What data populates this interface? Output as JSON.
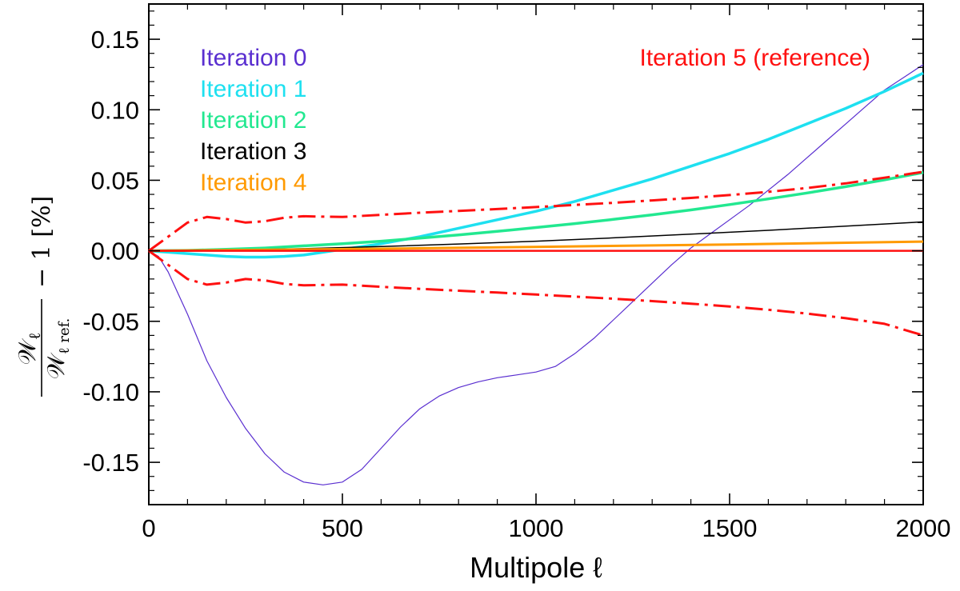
{
  "chart_data": {
    "type": "line",
    "title": "",
    "xlabel": "Multipole ℓ",
    "ylabel_parts": {
      "numerator": "𝒲",
      "numerator_sub": "ℓ",
      "denominator": "𝒲",
      "denominator_sub": "ℓ ref.",
      "suffix": "− 1 [%]"
    },
    "xlim": [
      0,
      2000
    ],
    "ylim": [
      -0.18,
      0.175
    ],
    "xticks": [
      0,
      500,
      1000,
      1500,
      2000
    ],
    "xtick_labels": [
      "0",
      "500",
      "1000",
      "1500",
      "2000"
    ],
    "yticks": [
      -0.15,
      -0.1,
      -0.05,
      0.0,
      0.05,
      0.1,
      0.15
    ],
    "ytick_labels": [
      "-0.15",
      "-0.10",
      "-0.05",
      "0.00",
      "0.05",
      "0.10",
      "0.15"
    ],
    "grid": false,
    "legend_placement": "top-left",
    "series": [
      {
        "name": "Iteration 0",
        "color": "#5a2fd0",
        "style": "solid",
        "width": 1.2,
        "x": [
          0,
          25,
          50,
          100,
          150,
          200,
          250,
          300,
          350,
          400,
          450,
          500,
          550,
          600,
          650,
          700,
          750,
          800,
          850,
          900,
          950,
          1000,
          1050,
          1100,
          1150,
          1200,
          1250,
          1300,
          1350,
          1400,
          1450,
          1500,
          1550,
          1600,
          1650,
          1700,
          1750,
          1800,
          1850,
          1900,
          1950,
          2000
        ],
        "y": [
          0.0,
          -0.004,
          -0.015,
          -0.045,
          -0.078,
          -0.104,
          -0.126,
          -0.144,
          -0.157,
          -0.164,
          -0.166,
          -0.164,
          -0.155,
          -0.14,
          -0.125,
          -0.112,
          -0.103,
          -0.097,
          -0.093,
          -0.09,
          -0.088,
          -0.086,
          -0.082,
          -0.073,
          -0.062,
          -0.049,
          -0.036,
          -0.023,
          -0.01,
          0.002,
          0.012,
          0.022,
          0.032,
          0.043,
          0.054,
          0.066,
          0.078,
          0.09,
          0.102,
          0.114,
          0.123,
          0.132
        ]
      },
      {
        "name": "Iteration 1",
        "color": "#1ee0f0",
        "style": "solid",
        "width": 3.5,
        "x": [
          0,
          50,
          100,
          150,
          200,
          250,
          300,
          350,
          400,
          450,
          500,
          600,
          700,
          800,
          900,
          1000,
          1100,
          1200,
          1300,
          1400,
          1500,
          1600,
          1700,
          1800,
          1900,
          2000
        ],
        "y": [
          0.0,
          -0.001,
          -0.002,
          -0.003,
          -0.004,
          -0.0045,
          -0.0045,
          -0.004,
          -0.003,
          -0.001,
          0.001,
          0.005,
          0.01,
          0.016,
          0.022,
          0.028,
          0.035,
          0.043,
          0.051,
          0.06,
          0.069,
          0.079,
          0.09,
          0.101,
          0.113,
          0.126
        ]
      },
      {
        "name": "Iteration 2",
        "color": "#22e890",
        "style": "solid",
        "width": 3.5,
        "x": [
          0,
          100,
          200,
          300,
          400,
          500,
          600,
          700,
          800,
          900,
          1000,
          1100,
          1200,
          1300,
          1400,
          1500,
          1600,
          1700,
          1800,
          1900,
          2000
        ],
        "y": [
          0.0,
          0.0003,
          0.001,
          0.002,
          0.0035,
          0.005,
          0.0068,
          0.009,
          0.0113,
          0.0138,
          0.0165,
          0.0193,
          0.0223,
          0.0255,
          0.029,
          0.0328,
          0.0368,
          0.041,
          0.0455,
          0.0503,
          0.0555
        ]
      },
      {
        "name": "Iteration 3",
        "color": "#000000",
        "style": "solid",
        "width": 1.5,
        "x": [
          0,
          200,
          400,
          600,
          800,
          1000,
          1200,
          1400,
          1600,
          1800,
          2000
        ],
        "y": [
          0.0,
          0.0005,
          0.0015,
          0.003,
          0.0048,
          0.0068,
          0.0092,
          0.0118,
          0.0145,
          0.0175,
          0.0205
        ]
      },
      {
        "name": "Iteration 4",
        "color": "#ff9a00",
        "style": "solid",
        "width": 3,
        "x": [
          0,
          500,
          1000,
          1500,
          2000
        ],
        "y": [
          0.0,
          0.0012,
          0.0028,
          0.0045,
          0.0065
        ]
      },
      {
        "name": "Iteration 5 (reference)",
        "color": "#ff1010",
        "style": "solid",
        "width": 2.5,
        "x": [
          0,
          2000
        ],
        "y": [
          0.0,
          0.0
        ]
      },
      {
        "name": "",
        "color": "#ff1010",
        "style": "dashdot",
        "width": 3,
        "x": [
          0,
          50,
          100,
          150,
          200,
          250,
          300,
          350,
          400,
          450,
          500,
          600,
          700,
          800,
          900,
          1000,
          1100,
          1200,
          1300,
          1400,
          1500,
          1600,
          1700,
          1800,
          1900,
          2000
        ],
        "y": [
          0.0,
          0.01,
          0.02,
          0.024,
          0.0225,
          0.02,
          0.021,
          0.0235,
          0.0245,
          0.0242,
          0.024,
          0.0255,
          0.027,
          0.0283,
          0.0296,
          0.031,
          0.0325,
          0.034,
          0.0357,
          0.0375,
          0.0395,
          0.0418,
          0.0445,
          0.0478,
          0.0518,
          0.056
        ]
      },
      {
        "name": "",
        "color": "#ff1010",
        "style": "dashdot",
        "width": 3,
        "x": [
          0,
          50,
          100,
          150,
          200,
          250,
          300,
          350,
          400,
          450,
          500,
          600,
          700,
          800,
          900,
          1000,
          1100,
          1200,
          1300,
          1400,
          1500,
          1600,
          1700,
          1800,
          1900,
          2000
        ],
        "y": [
          0.0,
          -0.01,
          -0.02,
          -0.024,
          -0.0225,
          -0.02,
          -0.021,
          -0.0235,
          -0.0245,
          -0.0242,
          -0.024,
          -0.0255,
          -0.027,
          -0.0283,
          -0.0296,
          -0.031,
          -0.0325,
          -0.034,
          -0.0357,
          -0.0375,
          -0.0395,
          -0.0418,
          -0.0445,
          -0.0478,
          -0.0518,
          -0.06
        ]
      }
    ],
    "legend": [
      {
        "label": "Iteration 0",
        "color": "#5a2fd0"
      },
      {
        "label": "Iteration 1",
        "color": "#1ee0f0"
      },
      {
        "label": "Iteration 2",
        "color": "#22e890"
      },
      {
        "label": "Iteration 3",
        "color": "#000000"
      },
      {
        "label": "Iteration 4",
        "color": "#ff9a00"
      }
    ],
    "legend_right": {
      "label": "Iteration 5 (reference)",
      "color": "#ff1010"
    }
  }
}
